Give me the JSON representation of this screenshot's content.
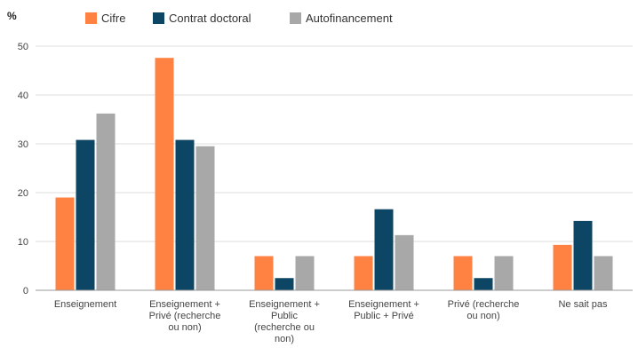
{
  "chart_data": {
    "type": "bar",
    "ylabel": "%",
    "ylim": [
      0,
      50
    ],
    "yticks": [
      0,
      10,
      20,
      30,
      40,
      50
    ],
    "grid": true,
    "legend_position": "top",
    "categories": [
      [
        "Enseignement"
      ],
      [
        "Enseignement +",
        "Privé (recherche",
        "ou non)"
      ],
      [
        "Enseignement +",
        "Public",
        "(recherche ou",
        "non)"
      ],
      [
        "Enseignement +",
        "Public + Privé"
      ],
      [
        "Privé (recherche",
        "ou non)"
      ],
      [
        "Ne sait pas"
      ]
    ],
    "series": [
      {
        "name": "Cifre",
        "color": "#FF8243",
        "values": [
          19,
          47.6,
          7,
          7,
          7,
          9.3
        ]
      },
      {
        "name": "Contrat doctoral",
        "color": "#0D4564",
        "values": [
          30.8,
          30.8,
          2.5,
          16.6,
          2.5,
          14.2
        ]
      },
      {
        "name": "Autofinancement",
        "color": "#A8A8A8",
        "values": [
          36.2,
          29.5,
          7,
          11.3,
          7,
          7
        ]
      }
    ]
  }
}
